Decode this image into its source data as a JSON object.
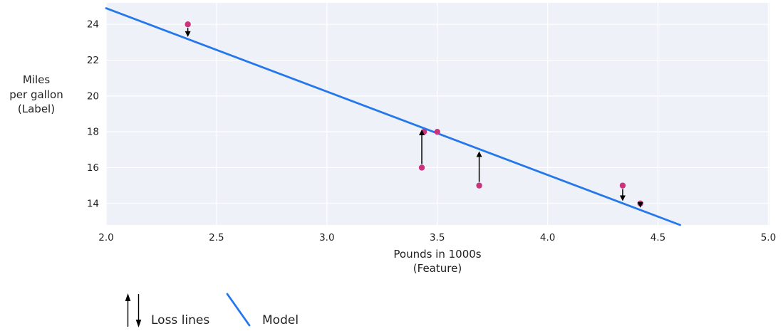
{
  "chart_data": {
    "type": "scatter",
    "title": "",
    "xlabel_lines": [
      "Pounds in 1000s",
      "(Feature)"
    ],
    "ylabel_lines": [
      "Miles",
      "per gallon",
      "(Label)"
    ],
    "x_tick_values": [
      2.0,
      2.5,
      3.0,
      3.5,
      4.0,
      4.5,
      5.0
    ],
    "x_tick_labels": [
      "2.0",
      "2.5",
      "3.0",
      "3.5",
      "4.0",
      "4.5",
      "5.0"
    ],
    "y_tick_values": [
      14,
      16,
      18,
      20,
      22,
      24
    ],
    "y_tick_labels": [
      "14",
      "16",
      "18",
      "20",
      "22",
      "24"
    ],
    "xlim": [
      2.0,
      5.005
    ],
    "ylim": [
      12.8,
      25.2
    ],
    "grid": true,
    "legend_position": "bottom-left",
    "points": [
      {
        "x": 2.37,
        "y": 24,
        "loss_arrow": "down"
      },
      {
        "x": 3.43,
        "y": 16,
        "loss_arrow": "up"
      },
      {
        "x": 3.44,
        "y": 18,
        "loss_arrow": "none"
      },
      {
        "x": 3.5,
        "y": 18,
        "loss_arrow": "none"
      },
      {
        "x": 3.69,
        "y": 15,
        "loss_arrow": "up"
      },
      {
        "x": 4.34,
        "y": 15,
        "loss_arrow": "down"
      },
      {
        "x": 4.42,
        "y": 14,
        "loss_arrow": "down"
      }
    ],
    "model_line": {
      "x1": 2.0,
      "y1": 24.9,
      "x2": 4.6,
      "y2": 12.8
    },
    "legend": [
      {
        "label": "Loss lines",
        "symbol": "up-down-arrows"
      },
      {
        "label": "Model",
        "symbol": "blue-line"
      }
    ],
    "colors": {
      "model_line": "#2478ec",
      "point": "#cc337d",
      "plot_bg": "#eef1f7",
      "grid": "#ffffff",
      "text": "#1f1f1f",
      "arrow": "#000000",
      "background": "#ffffff"
    }
  }
}
